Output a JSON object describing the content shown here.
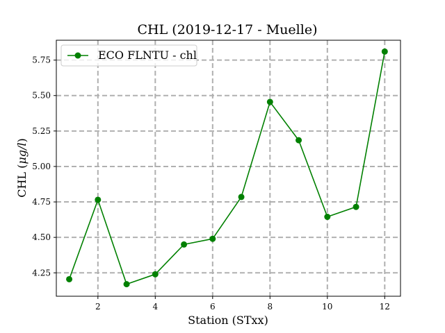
{
  "chart_data": {
    "type": "line",
    "title": "CHL (2019-12-17 - Muelle)",
    "xlabel": "Station (STxx)",
    "ylabel_prefix": "CHL (",
    "ylabel_unit": "μg/l",
    "ylabel_suffix": ")",
    "xlim": [
      0.55,
      12.55
    ],
    "ylim": [
      4.085,
      5.89
    ],
    "xticks": [
      2,
      4,
      6,
      8,
      10,
      12
    ],
    "yticks": [
      4.25,
      4.5,
      4.75,
      5.0,
      5.25,
      5.5,
      5.75
    ],
    "ytick_labels": [
      "4.25",
      "4.50",
      "4.75",
      "5.00",
      "5.25",
      "5.50",
      "5.75"
    ],
    "grid": true,
    "legend_position": "top-left",
    "series": [
      {
        "name": "ECO FLNTU - chl",
        "color": "#008000",
        "marker": "circle",
        "x": [
          1,
          2,
          3,
          4,
          5,
          6,
          7,
          8,
          9,
          10,
          11,
          12
        ],
        "y": [
          4.205,
          4.765,
          4.17,
          4.24,
          4.45,
          4.49,
          4.785,
          5.455,
          5.185,
          4.645,
          4.715,
          5.81
        ]
      }
    ]
  }
}
